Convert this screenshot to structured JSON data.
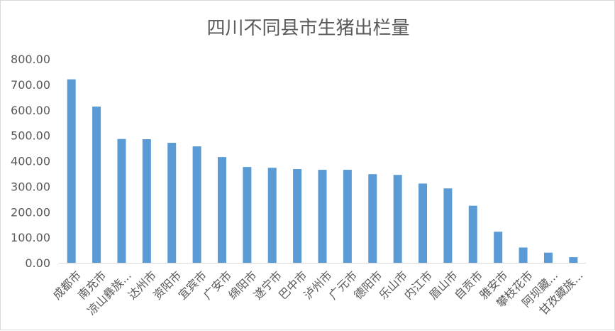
{
  "chart_data": {
    "type": "bar",
    "title": "四川不同县市生猪出栏量",
    "xlabel": "",
    "ylabel": "",
    "ylim": [
      0,
      800
    ],
    "yticks": [
      "0.00",
      "100.00",
      "200.00",
      "300.00",
      "400.00",
      "500.00",
      "600.00",
      "700.00",
      "800.00"
    ],
    "grid": false,
    "legend": "none",
    "bar_color": "#5b9bd5",
    "categories": [
      "成都市",
      "南充市",
      "凉山彝族...",
      "达州市",
      "资阳市",
      "宜宾市",
      "广安市",
      "绵阳市",
      "遂宁市",
      "巴中市",
      "泸州市",
      "广元市",
      "德阳市",
      "乐山市",
      "内江市",
      "眉山市",
      "自贡市",
      "雅安市",
      "攀枝花市",
      "阿坝藏...",
      "甘孜藏族..."
    ],
    "values": [
      720,
      613,
      486,
      485,
      471,
      457,
      415,
      376,
      373,
      368,
      365,
      365,
      348,
      345,
      311,
      292,
      224,
      122,
      60,
      40,
      22
    ]
  }
}
